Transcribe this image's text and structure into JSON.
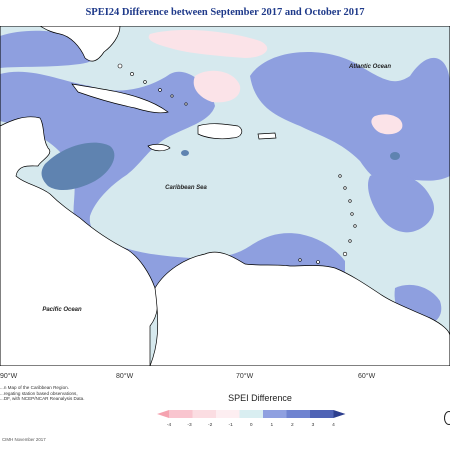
{
  "title": "SPEI24 Difference between September 2017 and October 2017",
  "map": {
    "labels": {
      "atlantic": "Atlantic Ocean",
      "caribbean": "Caribbean Sea",
      "pacific": "Pacific Ocean"
    },
    "longitude_labels": [
      "90°W",
      "80°W",
      "70°W",
      "60°W"
    ]
  },
  "legend": {
    "title": "SPEI Difference",
    "ticks": [
      "-4",
      "-3",
      "-2",
      "-1",
      "0",
      "1",
      "2",
      "3",
      "4"
    ],
    "colors": [
      "#f5a3b0",
      "#f9c5cf",
      "#fbdde2",
      "#fdeef1",
      "#d9eef1",
      "#8fa0e0",
      "#6f83d0",
      "#4f63b5",
      "#2d3f8e"
    ]
  },
  "colors": {
    "ocean_base": "#d6e9ee",
    "wet_moderate": "#8e9fdf",
    "wet_strong": "#5f83b0",
    "dry_light": "#fbe3e8",
    "land": "#ffffff",
    "border": "#000000"
  },
  "notes": {
    "description": "...n Map of the Caribbean Region.\n...regating station based observations,\n...DF, with NCEP/NCAR Reanalysis Data.",
    "credit": "CIMH November 2017"
  }
}
